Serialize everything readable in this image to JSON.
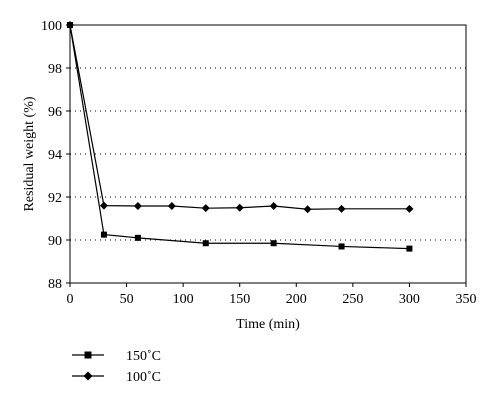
{
  "chart_data": {
    "type": "line",
    "title": "",
    "xlabel": "Time (min)",
    "ylabel": "Residual weight (%)",
    "xlim": [
      0,
      350
    ],
    "ylim": [
      88,
      100
    ],
    "x_ticks": [
      "0",
      "50",
      "100",
      "150",
      "200",
      "250",
      "300",
      "350"
    ],
    "y_ticks": [
      "88",
      "90",
      "92",
      "94",
      "96",
      "98",
      "100"
    ],
    "grid": "horizontal dotted",
    "legend_position": "bottom-left",
    "series": [
      {
        "name": "150˚C",
        "marker": "square",
        "x": [
          0,
          30,
          60,
          120,
          180,
          240,
          300
        ],
        "y": [
          100,
          90.25,
          90.1,
          89.85,
          89.85,
          89.7,
          89.6
        ]
      },
      {
        "name": "100˚C",
        "marker": "diamond",
        "x": [
          0,
          30,
          60,
          90,
          120,
          150,
          180,
          210,
          240,
          300
        ],
        "y": [
          100,
          91.6,
          91.58,
          91.58,
          91.48,
          91.5,
          91.58,
          91.43,
          91.45,
          91.45
        ]
      }
    ]
  }
}
